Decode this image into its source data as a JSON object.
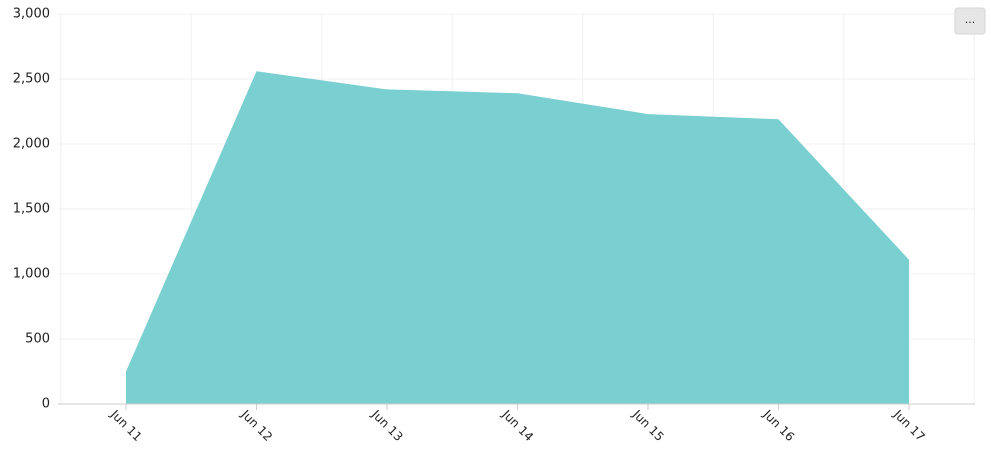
{
  "chart_data": {
    "type": "area",
    "categories": [
      "Jun 11",
      "Jun 12",
      "Jun 13",
      "Jun 14",
      "Jun 15",
      "Jun 16",
      "Jun 17"
    ],
    "values": [
      250,
      2560,
      2420,
      2390,
      2230,
      2190,
      1110
    ],
    "color": "#7acfd1",
    "ylim": [
      0,
      3000
    ],
    "yticks": [
      0,
      500,
      {
        "value": 1000,
        "label": "1,000"
      },
      {
        "value": 1500,
        "label": "1,500"
      },
      {
        "value": 2000,
        "label": "2,000"
      },
      {
        "value": 2500,
        "label": "2,500"
      },
      {
        "value": 3000,
        "label": "3,000"
      }
    ],
    "grid": true
  },
  "menu_button": "..."
}
